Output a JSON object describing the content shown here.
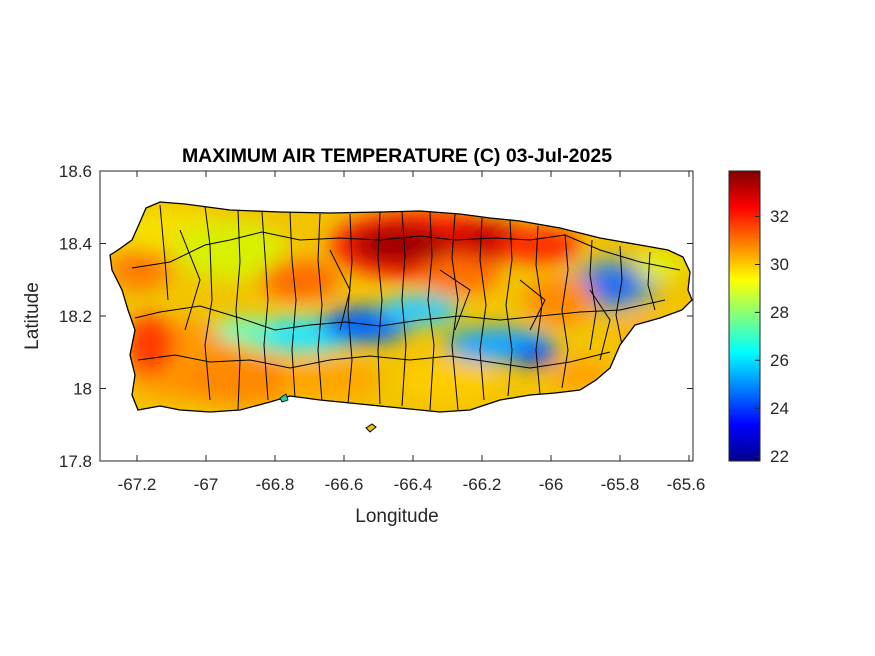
{
  "figure": {
    "title": "MAXIMUM AIR TEMPERATURE (C) 03-Jul-2025",
    "xlabel": "Longitude",
    "ylabel": "Latitude"
  },
  "chart_data": {
    "type": "heatmap",
    "title": "MAXIMUM AIR TEMPERATURE (C) 03-Jul-2025",
    "xlabel": "Longitude",
    "ylabel": "Latitude",
    "xlim": [
      -67.3,
      -65.58
    ],
    "ylim": [
      17.8,
      18.6
    ],
    "x_ticks": [
      -67.2,
      -67,
      -66.8,
      -66.6,
      -66.4,
      -66.2,
      -66,
      -65.8,
      -65.6
    ],
    "x_tick_labels": [
      "-67.2",
      "-67",
      "-66.8",
      "-66.6",
      "-66.4",
      "-66.2",
      "-66",
      "-65.8",
      "-65.6"
    ],
    "y_ticks": [
      17.8,
      18,
      18.2,
      18.4,
      18.6
    ],
    "y_tick_labels": [
      "17.8",
      "18",
      "18.2",
      "18.4",
      "18.6"
    ],
    "colorbar": {
      "range": [
        21.8,
        33.9
      ],
      "ticks": [
        22,
        24,
        26,
        28,
        30,
        32
      ],
      "tick_labels": [
        "22",
        "24",
        "26",
        "28",
        "30",
        "32"
      ],
      "colormap": "jet"
    },
    "grid": false,
    "region": "Puerto Rico municipalities"
  }
}
